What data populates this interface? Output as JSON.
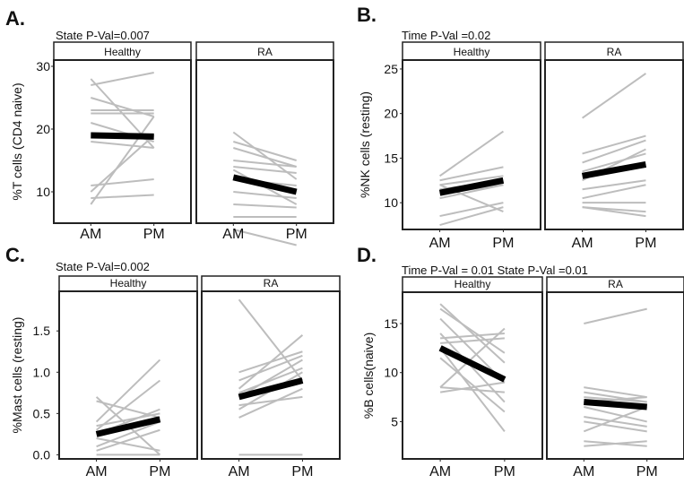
{
  "chart_data": [
    {
      "letter": "A.",
      "type": "line",
      "title": "State P-Val=0.007",
      "ylabel": "%T cells (CD4 naive)",
      "x": [
        "AM",
        "PM"
      ],
      "ylim": [
        5,
        31
      ],
      "yticks": [
        10,
        20,
        30
      ],
      "facets": [
        {
          "name": "Healthy",
          "subjects": [
            [
              27.0,
              29.0
            ],
            [
              28.0,
              17.0
            ],
            [
              25.0,
              22.0
            ],
            [
              23.0,
              23.0
            ],
            [
              22.5,
              22.5
            ],
            [
              21.0,
              18.0
            ],
            [
              18.0,
              17.0
            ],
            [
              11.0,
              12.0
            ],
            [
              10.0,
              19.0
            ],
            [
              8.0,
              22.0
            ],
            [
              9.0,
              9.5
            ]
          ],
          "mean": [
            19.0,
            18.8
          ]
        },
        {
          "name": "RA",
          "subjects": [
            [
              19.5,
              12.0
            ],
            [
              18.0,
              15.0
            ],
            [
              17.0,
              14.0
            ],
            [
              15.0,
              14.0
            ],
            [
              14.0,
              13.0
            ],
            [
              13.5,
              8.0
            ],
            [
              12.0,
              11.0
            ],
            [
              10.0,
              9.0
            ],
            [
              8.0,
              7.5
            ],
            [
              6.0,
              6.0
            ],
            [
              4.0,
              1.5
            ]
          ],
          "mean": [
            12.3,
            10.0
          ]
        }
      ]
    },
    {
      "letter": "B.",
      "type": "line",
      "title": "Time P-Val =0.02",
      "ylabel": "%NK cells (resting)",
      "x": [
        "AM",
        "PM"
      ],
      "ylim": [
        7.0,
        26.0
      ],
      "yticks": [
        10,
        15,
        20,
        25
      ],
      "facets": [
        {
          "name": "Healthy",
          "subjects": [
            [
              13.0,
              18.0
            ],
            [
              12.5,
              14.0
            ],
            [
              12.0,
              13.0
            ],
            [
              12.0,
              9.0
            ],
            [
              11.5,
              12.5
            ],
            [
              11.0,
              12.0
            ],
            [
              10.5,
              12.0
            ],
            [
              8.5,
              10.0
            ],
            [
              7.5,
              9.5
            ]
          ],
          "mean": [
            11.1,
            12.5
          ]
        },
        {
          "name": "RA",
          "subjects": [
            [
              19.5,
              24.5
            ],
            [
              15.5,
              17.5
            ],
            [
              14.5,
              17.0
            ],
            [
              13.5,
              15.5
            ],
            [
              12.5,
              16.0
            ],
            [
              11.5,
              12.5
            ],
            [
              10.5,
              12.0
            ],
            [
              10.0,
              10.0
            ],
            [
              9.5,
              9.0
            ],
            [
              9.5,
              8.5
            ]
          ],
          "mean": [
            13.0,
            14.3
          ]
        }
      ]
    },
    {
      "letter": "C.",
      "type": "line",
      "title": "State P-Val=0.002",
      "ylabel": "%Mast cells (resting)",
      "x": [
        "AM",
        "PM"
      ],
      "ylim": [
        -0.05,
        1.98
      ],
      "yticks": [
        0.0,
        0.5,
        1.0,
        1.5
      ],
      "ytick_labels": [
        "0.0",
        "0.5",
        "1.0",
        "1.5"
      ],
      "facets": [
        {
          "name": "Healthy",
          "subjects": [
            [
              0.7,
              0.0
            ],
            [
              0.65,
              0.45
            ],
            [
              0.4,
              1.15
            ],
            [
              0.35,
              0.5
            ],
            [
              0.3,
              0.9
            ],
            [
              0.25,
              0.55
            ],
            [
              0.2,
              0.05
            ],
            [
              0.1,
              0.4
            ],
            [
              0.05,
              0.3
            ],
            [
              0.0,
              0.0
            ]
          ],
          "mean": [
            0.25,
            0.43
          ]
        },
        {
          "name": "RA",
          "subjects": [
            [
              1.88,
              0.9
            ],
            [
              1.0,
              1.25
            ],
            [
              0.9,
              1.2
            ],
            [
              0.8,
              1.45
            ],
            [
              0.75,
              1.05
            ],
            [
              0.7,
              1.15
            ],
            [
              0.6,
              0.7
            ],
            [
              0.55,
              1.0
            ],
            [
              0.45,
              0.8
            ],
            [
              0.0,
              0.0
            ]
          ],
          "mean": [
            0.7,
            0.9
          ]
        }
      ]
    },
    {
      "letter": "D.",
      "type": "line",
      "title": "Time P-Val = 0.01 State P-Val =0.01",
      "ylabel": "%B cells(naive)",
      "x": [
        "AM",
        "PM"
      ],
      "ylim": [
        1.2,
        18.2
      ],
      "yticks": [
        5,
        10,
        15
      ],
      "facets": [
        {
          "name": "Healthy",
          "subjects": [
            [
              17.0,
              11.0
            ],
            [
              16.5,
              12.0
            ],
            [
              15.5,
              9.0
            ],
            [
              14.0,
              7.0
            ],
            [
              13.5,
              14.0
            ],
            [
              13.0,
              13.5
            ],
            [
              12.5,
              4.0
            ],
            [
              11.5,
              6.0
            ],
            [
              8.5,
              14.5
            ],
            [
              8.5,
              8.0
            ],
            [
              8.0,
              9.0
            ]
          ],
          "mean": [
            12.5,
            9.3
          ]
        },
        {
          "name": "RA",
          "subjects": [
            [
              15.0,
              16.5
            ],
            [
              8.5,
              7.5
            ],
            [
              8.0,
              7.0
            ],
            [
              7.5,
              7.0
            ],
            [
              7.0,
              7.5
            ],
            [
              6.5,
              5.0
            ],
            [
              5.5,
              4.5
            ],
            [
              5.0,
              4.0
            ],
            [
              4.0,
              6.5
            ],
            [
              3.0,
              2.5
            ],
            [
              2.5,
              3.0
            ]
          ],
          "mean": [
            7.0,
            6.5
          ]
        }
      ]
    }
  ]
}
